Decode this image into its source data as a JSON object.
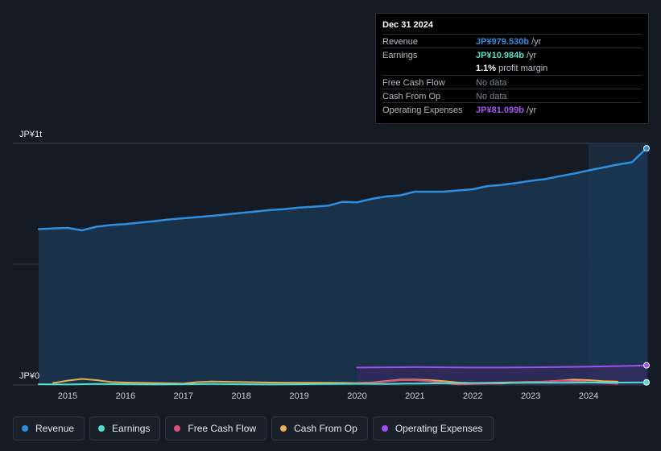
{
  "chart_data": {
    "type": "area",
    "y_axis": {
      "top_label": "JP¥1t",
      "bottom_label": "JP¥0",
      "ylim": [
        0,
        1000
      ]
    },
    "x_ticks": [
      "2015",
      "2016",
      "2017",
      "2018",
      "2019",
      "2020",
      "2021",
      "2022",
      "2023",
      "2024"
    ],
    "forecast_region_start": 2024.0,
    "series": [
      {
        "name": "Revenue",
        "color": "#2d8fe0",
        "fill": true,
        "x": [
          2014.5,
          2014.75,
          2015.0,
          2015.25,
          2015.5,
          2015.75,
          2016.0,
          2016.25,
          2016.5,
          2016.75,
          2017.0,
          2017.25,
          2017.5,
          2017.75,
          2018.0,
          2018.25,
          2018.5,
          2018.75,
          2019.0,
          2019.25,
          2019.5,
          2019.75,
          2020.0,
          2020.25,
          2020.5,
          2020.75,
          2021.0,
          2021.25,
          2021.5,
          2021.75,
          2022.0,
          2022.25,
          2022.5,
          2022.75,
          2023.0,
          2023.25,
          2023.5,
          2023.75,
          2024.0,
          2024.25,
          2024.5,
          2024.75,
          2025.0
        ],
        "y": [
          645,
          648,
          650,
          640,
          655,
          662,
          666,
          672,
          678,
          685,
          690,
          695,
          700,
          706,
          712,
          718,
          724,
          728,
          734,
          738,
          742,
          758,
          756,
          770,
          780,
          785,
          800,
          800,
          800,
          805,
          810,
          823,
          828,
          836,
          845,
          852,
          864,
          875,
          888,
          900,
          912,
          922,
          979.53
        ]
      },
      {
        "name": "Earnings",
        "color": "#4fe0c9",
        "fill": false,
        "x": [
          2014.5,
          2015.0,
          2015.5,
          2016.0,
          2016.5,
          2017.0,
          2017.5,
          2018.0,
          2018.5,
          2019.0,
          2019.5,
          2020.0,
          2020.5,
          2021.0,
          2021.5,
          2022.0,
          2022.5,
          2023.0,
          2023.5,
          2024.0,
          2024.5,
          2025.0
        ],
        "y": [
          3,
          2,
          4,
          3,
          2,
          3,
          4,
          3,
          2,
          3,
          4,
          5,
          4,
          6,
          7,
          8,
          8,
          9,
          9,
          10,
          10,
          10.984
        ]
      },
      {
        "name": "Free Cash Flow",
        "color": "#d9527d",
        "fill": false,
        "x": [
          2019.75,
          2020.25,
          2020.5,
          2020.75,
          2021.0,
          2021.25,
          2021.5,
          2021.75,
          2022.0,
          2022.25,
          2022.5,
          2022.75,
          2023.0,
          2023.25,
          2023.5,
          2023.75,
          2024.0,
          2024.25,
          2024.5
        ],
        "y": [
          5,
          8,
          14,
          20,
          20,
          16,
          8,
          2,
          4,
          6,
          6,
          10,
          10,
          14,
          18,
          16,
          12,
          8,
          5
        ]
      },
      {
        "name": "Cash From Op",
        "color": "#e9b05a",
        "fill": false,
        "x": [
          2014.75,
          2015.0,
          2015.25,
          2015.5,
          2015.75,
          2016.0,
          2016.5,
          2017.0,
          2017.25,
          2017.5,
          2018.0,
          2018.5,
          2019.0,
          2019.5,
          2020.0,
          2020.25,
          2020.5,
          2020.75,
          2021.0,
          2021.25,
          2021.5,
          2021.75,
          2022.0,
          2022.5,
          2023.0,
          2023.25,
          2023.5,
          2023.75,
          2024.0,
          2024.25,
          2024.5
        ],
        "y": [
          8,
          18,
          25,
          20,
          12,
          10,
          8,
          6,
          12,
          14,
          12,
          10,
          9,
          9,
          8,
          10,
          16,
          22,
          22,
          20,
          16,
          10,
          8,
          10,
          12,
          14,
          18,
          22,
          20,
          16,
          14
        ]
      },
      {
        "name": "Operating Expenses",
        "color": "#a050f0",
        "fill": true,
        "x": [
          2020.0,
          2020.5,
          2021.0,
          2021.5,
          2022.0,
          2022.5,
          2023.0,
          2023.5,
          2024.0,
          2024.5,
          2025.0
        ],
        "y": [
          72,
          73,
          74,
          73,
          72,
          72,
          73,
          74,
          76,
          78,
          81.099
        ]
      }
    ]
  },
  "tooltip": {
    "date": "Dec 31 2024",
    "rows": [
      {
        "label": "Revenue",
        "value": "JP¥979.530b",
        "unit": " /yr",
        "color": "#2d8fe0"
      },
      {
        "label": "Earnings",
        "value": "JP¥10.984b",
        "unit": " /yr",
        "color": "#4fe0c9"
      },
      {
        "label": "",
        "margin_value": "1.1%",
        "margin_text": " profit margin"
      },
      {
        "label": "Free Cash Flow",
        "nodata": "No data"
      },
      {
        "label": "Cash From Op",
        "nodata": "No data"
      },
      {
        "label": "Operating Expenses",
        "value": "JP¥81.099b",
        "unit": " /yr",
        "color": "#a855f7"
      }
    ]
  },
  "legend": [
    {
      "label": "Revenue",
      "color": "#2d8fe0"
    },
    {
      "label": "Earnings",
      "color": "#4fe0c9"
    },
    {
      "label": "Free Cash Flow",
      "color": "#d9527d"
    },
    {
      "label": "Cash From Op",
      "color": "#e9b05a"
    },
    {
      "label": "Operating Expenses",
      "color": "#a050f0"
    }
  ]
}
